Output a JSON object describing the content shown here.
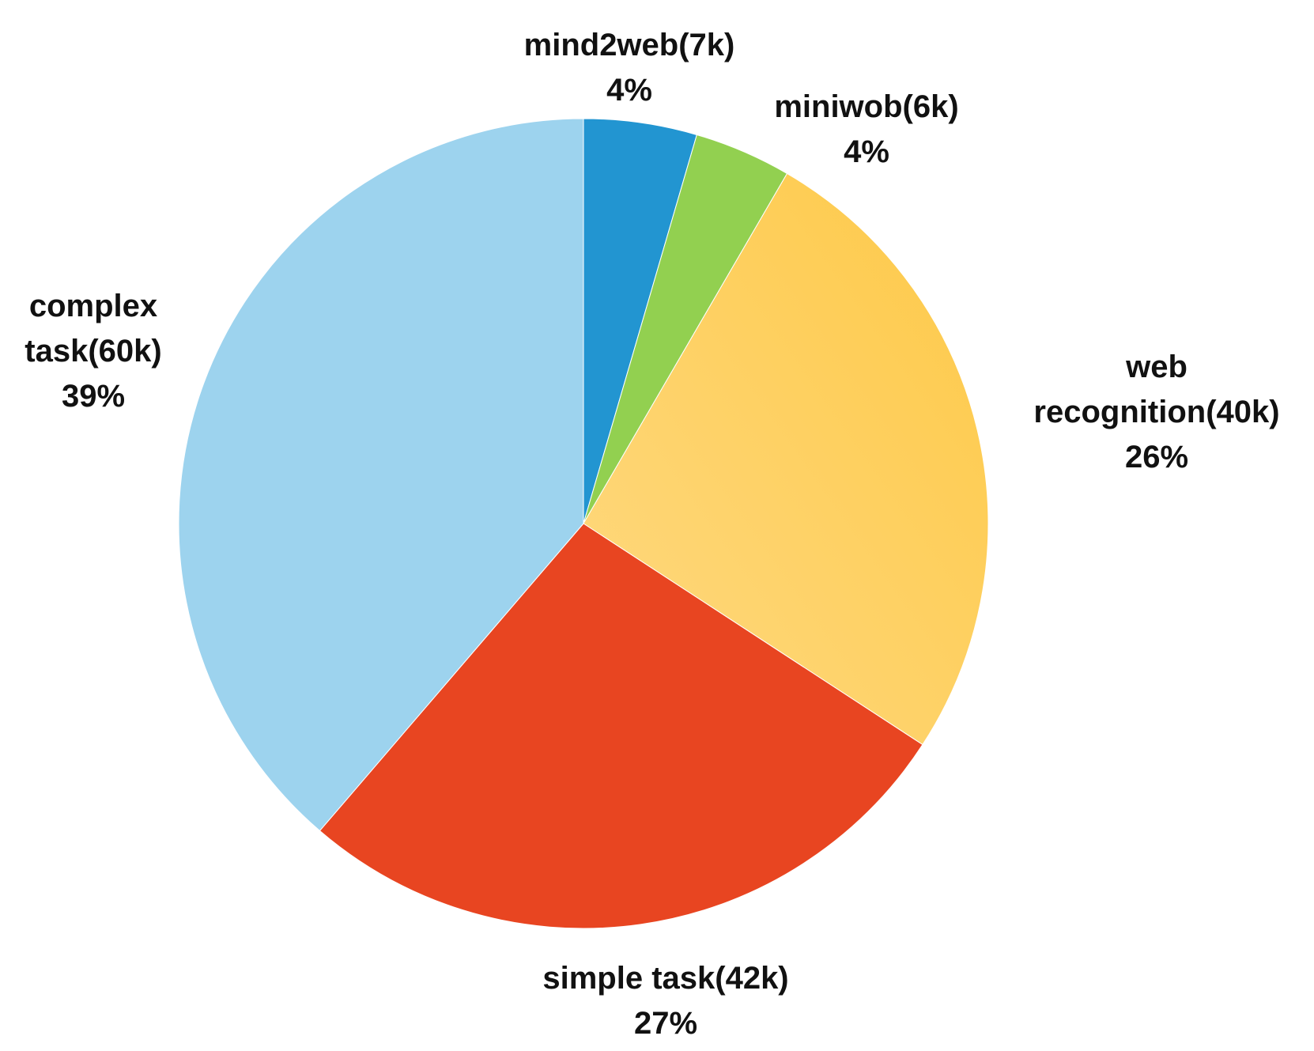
{
  "chart_data": {
    "type": "pie",
    "title": "",
    "start": "top",
    "direction": "clockwise",
    "slices": [
      {
        "label": [
          "mind2web(7k)"
        ],
        "percent_label": "4%",
        "value": 7,
        "color": "#2295D1",
        "gradient": null
      },
      {
        "label": [
          "miniwob(6k)"
        ],
        "percent_label": "4%",
        "value": 6,
        "color": "#92D050",
        "gradient": null
      },
      {
        "label": [
          "web",
          "recognition(40k)"
        ],
        "percent_label": "26%",
        "value": 40,
        "color": "#FDC947",
        "gradient": [
          "#FDC947",
          "#FFD982"
        ]
      },
      {
        "label": [
          "simple task(42k)"
        ],
        "percent_label": "27%",
        "value": 42,
        "color": "#E84521",
        "gradient": null
      },
      {
        "label": [
          "complex",
          "task(60k)"
        ],
        "percent_label": "39%",
        "value": 60,
        "color": "#9DD3EE",
        "gradient": null
      }
    ]
  }
}
